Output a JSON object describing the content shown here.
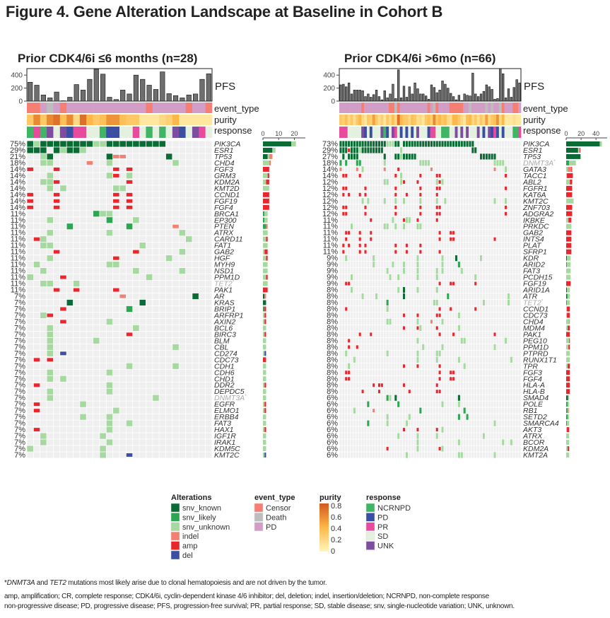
{
  "title": "Figure 4. Gene Alteration Landscape at Baseline in Cohort B",
  "footnote": {
    "line1_gene1": "DNMT3A",
    "line1_and": " and ",
    "line1_gene2": "TET2",
    "line1_star": "*",
    "line1_rest": " mutations most likely arise due to clonal hematopoiesis and are not driven by the tumor.",
    "line2": "amp, amplification; CR, complete response; CDK4/6i, cyclin-dependent kinase 4/6 inhibitor; del, deletion; indel, insertion/deletion; NCRNPD, non-complete response",
    "line3": "non-progressive disease; PD, progressive disease; PFS, progression-free survival; PR, partial response; SD, stable disease; snv, single-nucleotide variation; UNK, unknown."
  },
  "colors": {
    "alteration": {
      "K": "#0b6b35",
      "L": "#2ea552",
      "U": "#a6d9a0",
      "I": "#f48072",
      "A": "#e8262d",
      "D": "#3b4fa3"
    },
    "event": {
      "C": "#f47f72",
      "D": "#bdbdbd",
      "P": "#d29ec8"
    },
    "response": {
      "N": "#40b565",
      "D": "#3a4ea2",
      "R": "#e84a9e",
      "S": "#e4f1df",
      "U": "#7d4d9f"
    },
    "purity_scale": [
      "#fff7bc",
      "#fdb849",
      "#d2591f"
    ],
    "cell_bg": "#efefef",
    "pfs_bar": "#6e6e6e"
  },
  "legend": {
    "alterations": {
      "title": "Alterations",
      "items": [
        {
          "code": "K",
          "label": "snv_known"
        },
        {
          "code": "L",
          "label": "snv_likely"
        },
        {
          "code": "U",
          "label": "snv_unknown"
        },
        {
          "code": "I",
          "label": "indel"
        },
        {
          "code": "A",
          "label": "amp"
        },
        {
          "code": "D",
          "label": "del"
        }
      ]
    },
    "event_type": {
      "title": "event_type",
      "items": [
        {
          "code": "C",
          "label": "Censor"
        },
        {
          "code": "D",
          "label": "Death"
        },
        {
          "code": "P",
          "label": "PD"
        }
      ]
    },
    "purity": {
      "title": "purity",
      "ticks": [
        "0.8",
        "0.6",
        "0.4",
        "0.2",
        "0"
      ],
      "range": [
        0,
        0.8
      ]
    },
    "response": {
      "title": "response",
      "items": [
        {
          "code": "N",
          "label": "NCRNPD"
        },
        {
          "code": "D",
          "label": "PD"
        },
        {
          "code": "R",
          "label": "PR"
        },
        {
          "code": "S",
          "label": "SD"
        },
        {
          "code": "U",
          "label": "UNK"
        }
      ]
    }
  },
  "chart_data": [
    {
      "type": "heatmap",
      "title": "Prior CDK4/6i ≤6 months (n=28)",
      "n": 28,
      "track_labels": {
        "pfs": "PFS",
        "event": "event_type",
        "purity": "purity",
        "response": "response"
      },
      "pfs_ticks": [
        "0",
        "200",
        "400"
      ],
      "pfs_ylim": [
        0,
        500
      ],
      "pfs": [
        290,
        245,
        95,
        50,
        140,
        5,
        60,
        255,
        170,
        335,
        490,
        415,
        60,
        25,
        170,
        110,
        400,
        335,
        245,
        180,
        450,
        115,
        85,
        50,
        95,
        110,
        335,
        420
      ],
      "event": "CCPDPCPPPPPPPPPPPPCPPPPPCPPC",
      "purity": [
        0.3,
        0.6,
        0.3,
        0.6,
        0.7,
        0.35,
        0.6,
        0.2,
        0.7,
        0.4,
        0.3,
        0.35,
        0.55,
        0.55,
        0.35,
        0.3,
        0.3,
        0.1,
        0.1,
        0.1,
        0.2,
        0.25,
        0.4,
        0.1,
        0.1,
        0.1,
        0.1,
        0.1
      ],
      "response": "NRNUSUDRRSSNDDSSRSNSNSUDSURS",
      "count_ticks": [
        "0",
        "10",
        "20"
      ],
      "count_xlim": [
        0,
        27
      ],
      "rows": [
        {
          "gene": "PIK3CA",
          "pct": "75%",
          "cells": "0-20K 1U 10-11U"
        },
        {
          "gene": "ESR1",
          "pct": "29%",
          "cells": "0-2K 4K 5U 6-7K 8U"
        },
        {
          "gene": "TP53",
          "pct": "21%",
          "cells": "2U 3K 12K 13-14I 21K"
        },
        {
          "gene": "CHD4",
          "pct": "18%",
          "cells": "2-3U 9I 12U 22U"
        },
        {
          "gene": "FGF3",
          "pct": "14%",
          "cells": "0A 4A 13A 15A"
        },
        {
          "gene": "GRM3",
          "pct": "14%",
          "cells": "3U 12U 13A 15U"
        },
        {
          "gene": "KDM2A",
          "pct": "14%",
          "cells": "2-3U 4A 15A"
        },
        {
          "gene": "KMT2D",
          "pct": "14%",
          "cells": "3U 5U 13-14U"
        },
        {
          "gene": "CCND1",
          "pct": "14%",
          "cells": "0A 4A 13A 15A"
        },
        {
          "gene": "FGF19",
          "pct": "14%",
          "cells": "0A 4A 13A 15A"
        },
        {
          "gene": "FGF4",
          "pct": "14%",
          "cells": "0A 4A 13A 15A"
        },
        {
          "gene": "BRCA1",
          "pct": "11%",
          "cells": "10L 11-12U"
        },
        {
          "gene": "EP300",
          "pct": "11%",
          "cells": "3U 12L 16U"
        },
        {
          "gene": "PTEN",
          "pct": "11%",
          "cells": "6L 15L 22I"
        },
        {
          "gene": "ATRX",
          "pct": "11%",
          "cells": "3U 12U 23U"
        },
        {
          "gene": "CARD11",
          "pct": "11%",
          "cells": "1A 2U 24U"
        },
        {
          "gene": "FAT1",
          "pct": "11%",
          "cells": "2-3U 17U"
        },
        {
          "gene": "GAB2",
          "pct": "11%",
          "cells": "4A 16A 23U"
        },
        {
          "gene": "HGF",
          "pct": "11%",
          "cells": "3U 13A 21U"
        },
        {
          "gene": "MYH9",
          "pct": "11%",
          "cells": "1U 12-13U"
        },
        {
          "gene": "NSD1",
          "pct": "11%",
          "cells": "2U 16U 23U"
        },
        {
          "gene": "PPM1D",
          "pct": "11%",
          "cells": "0U 5A 18U"
        },
        {
          "gene": "TET2",
          "pct": "11%",
          "cells": "2-3U 7U",
          "ch": "*"
        },
        {
          "gene": "PAK1",
          "pct": "11%",
          "cells": "4A 7A 13A"
        },
        {
          "gene": "AR",
          "pct": "7%",
          "cells": "14I 25K"
        },
        {
          "gene": "KRAS",
          "pct": "7%",
          "cells": "6K 17K"
        },
        {
          "gene": "BRIP1",
          "pct": "7%",
          "cells": "5A 15L"
        },
        {
          "gene": "ARFRP1",
          "pct": "7%",
          "cells": "2U 3A"
        },
        {
          "gene": "AXIN2",
          "pct": "7%",
          "cells": "5A 12U"
        },
        {
          "gene": "BCL6",
          "pct": "7%",
          "cells": "3U 16U"
        },
        {
          "gene": "BIRC3",
          "pct": "7%",
          "cells": "3U 15A"
        },
        {
          "gene": "BLM",
          "pct": "7%",
          "cells": "3U 10U"
        },
        {
          "gene": "CBL",
          "pct": "7%",
          "cells": "3U 22U"
        },
        {
          "gene": "CD274",
          "pct": "7%",
          "cells": "3U 5D"
        },
        {
          "gene": "CDC73",
          "pct": "7%",
          "cells": "1A 3A"
        },
        {
          "gene": "CDH1",
          "pct": "7%",
          "cells": "15U 22U"
        },
        {
          "gene": "CDH6",
          "pct": "7%",
          "cells": "3U 12U"
        },
        {
          "gene": "CHD1",
          "pct": "7%",
          "cells": "3U 5U"
        },
        {
          "gene": "DDR2",
          "pct": "7%",
          "cells": "1A 12U"
        },
        {
          "gene": "DEPDC5",
          "pct": "7%",
          "cells": "3U 12U"
        },
        {
          "gene": "DNMT3A",
          "pct": "7%",
          "cells": "3U 19U",
          "ch": "*"
        },
        {
          "gene": "EGFR",
          "pct": "7%",
          "cells": "1A 8U"
        },
        {
          "gene": "ELMO1",
          "pct": "7%",
          "cells": "1A 13U"
        },
        {
          "gene": "ERBB4",
          "pct": "7%",
          "cells": "8U 12U"
        },
        {
          "gene": "FAT3",
          "pct": "7%",
          "cells": "12U 15U"
        },
        {
          "gene": "HAX1",
          "pct": "7%",
          "cells": "1A 12U"
        },
        {
          "gene": "IGF1R",
          "pct": "7%",
          "cells": "2U 11U"
        },
        {
          "gene": "IRAK1",
          "pct": "7%",
          "cells": "2U 12U"
        },
        {
          "gene": "KDM5C",
          "pct": "7%",
          "cells": "0U 11U"
        },
        {
          "gene": "KMT2C",
          "pct": "7%",
          "cells": "11U 15D"
        }
      ]
    },
    {
      "type": "heatmap",
      "title": "Prior CDK4/6i >6mo (n=66)",
      "n": 66,
      "track_labels": {
        "pfs": "PFS",
        "event": "event_type",
        "purity": "purity",
        "response": "response"
      },
      "pfs_ticks": [
        "0",
        "200",
        "400"
      ],
      "pfs_ylim": [
        0,
        500
      ],
      "pfs": [
        250,
        260,
        220,
        280,
        110,
        170,
        170,
        170,
        160,
        70,
        110,
        60,
        100,
        170,
        70,
        20,
        160,
        50,
        110,
        260,
        40,
        480,
        50,
        230,
        60,
        220,
        110,
        280,
        190,
        110,
        110,
        80,
        30,
        250,
        210,
        130,
        170,
        310,
        260,
        200,
        120,
        70,
        20,
        90,
        10,
        110,
        90,
        80,
        430,
        110,
        70,
        110,
        150,
        250,
        220,
        180,
        30,
        40,
        500,
        420,
        50,
        190,
        60,
        210,
        330,
        280
      ],
      "event": "PPPPPPPPCPPPPPPPPPCCDCPPPPPPPPPPCPDCPPPPCCCCCPPDPPPPPDPDPPDCPPPCCP",
      "purity": [
        0.3,
        0.25,
        0.35,
        0.2,
        0.3,
        0.15,
        0.3,
        0.4,
        0.2,
        0.1,
        0.3,
        0.25,
        0.5,
        0.3,
        0.15,
        0.25,
        0.1,
        0.3,
        0.2,
        0.35,
        0.2,
        0.7,
        0.4,
        0.3,
        0.3,
        0.2,
        0.35,
        0.3,
        0.15,
        0.2,
        0.1,
        0.3,
        0.35,
        0.25,
        0.6,
        0.3,
        0.4,
        0.3,
        0.35,
        0.2,
        0.15,
        0.4,
        0.4,
        0.3,
        0.2,
        0.1,
        0.35,
        0.4,
        0.2,
        0.3,
        0.15,
        0.3,
        0.2,
        0.5,
        0.2,
        0.3,
        0.35,
        0.55,
        0.2,
        0.4,
        0.1,
        0.1,
        0.1,
        0.15,
        0.1,
        0.1
      ],
      "response": "RRRSSSSSUDSDSSSUNDSURSDSDSDSUSSSDRRSSNNNSSUSUSUSSSUSDSUDRDSDSSSNNR",
      "count_ticks": [
        "0",
        "20",
        "40"
      ],
      "count_xlim": [
        0,
        55
      ],
      "rows": [
        {
          "gene": "PIK3CA",
          "pct": "73%",
          "cells": "0-21K 23-48K 17-19U"
        },
        {
          "gene": "ESR1",
          "pct": "29%",
          "cells": "0-15K 3A 7U 22U 48-49K"
        },
        {
          "gene": "TP53",
          "pct": "27%",
          "cells": "1K 3-6K 16K 20-21K 22U 23-27K 51-56K"
        },
        {
          "gene": "DNMT3A",
          "pct": "18%",
          "cells": "0L 2L 6-7L 16U 29-32U 56-59U",
          "ch": "*"
        },
        {
          "gene": "GATA3",
          "pct": "14%",
          "cells": "0I 6I 8U 16I 21A 33I 56I 60U"
        },
        {
          "gene": "TACC1",
          "pct": "14%",
          "cells": "1-2A 7A 20A 22U 29A 35-36A 60A"
        },
        {
          "gene": "ABL2",
          "pct": "12%",
          "cells": "16-17U 22U 23A 28A 35U 36A 37U"
        },
        {
          "gene": "FGFR1",
          "pct": "12%",
          "cells": "1-2A 9A 20A 29A 35-36A 60A"
        },
        {
          "gene": "KAT6A",
          "pct": "12%",
          "cells": "1A 3A 7A 9A 20A 24A 29A 35A"
        },
        {
          "gene": "KMT2C",
          "pct": "12%",
          "cells": "8U 10U 16U 20U 23U 29U 35U 38U 56U 60U"
        },
        {
          "gene": "ZNF703",
          "pct": "12%",
          "cells": "1-2A 9A 20A 29A 35-36A 60A"
        },
        {
          "gene": "ADGRA2",
          "pct": "12%",
          "cells": "1-2A 9A 20A 29A 35-36A 60A"
        },
        {
          "gene": "IKBKE",
          "pct": "11%",
          "cells": "11A 19U 23A 24-25U 28A 35A"
        },
        {
          "gene": "PRKDC",
          "pct": "11%",
          "cells": "4U 16-17U 20U 23U 28-29U"
        },
        {
          "gene": "GAB2",
          "pct": "11%",
          "cells": "2-3A 7A 11A 36A 40-41A"
        },
        {
          "gene": "INTS4",
          "pct": "11%",
          "cells": "2A 7A 11A 36A 40-41A 56A"
        },
        {
          "gene": "PLAT",
          "pct": "11%",
          "cells": "1A 3A 7A 9A 20A 24A 29A"
        },
        {
          "gene": "SFRP1",
          "pct": "11%",
          "cells": "1A 7A 9A 20A 24A 29A 36A"
        },
        {
          "gene": "KDR",
          "pct": "9%",
          "cells": "2U 12U 28U 37U 42K 51U"
        },
        {
          "gene": "ARID2",
          "pct": "9%",
          "cells": "12U 19U 23U 28U 37U 43L"
        },
        {
          "gene": "FAT3",
          "pct": "9%",
          "cells": "17U 23U 28U 35U 37U 44U"
        },
        {
          "gene": "PCDH15",
          "pct": "9%",
          "cells": "4U 18U 21U 28U 35U 49U"
        },
        {
          "gene": "FGF19",
          "pct": "9%",
          "cells": "2-3A 36A 40-41A 49A"
        },
        {
          "gene": "ARID1A",
          "pct": "8%",
          "cells": "4U 21U 23K 28U 35U"
        },
        {
          "gene": "ATR",
          "pct": "8%",
          "cells": "8U 13U 23K 39L 61U"
        },
        {
          "gene": "TET2",
          "pct": "8%",
          "cells": "17L 34-35U 52U 61U",
          "ch": "*"
        },
        {
          "gene": "CCND1",
          "pct": "8%",
          "cells": "2A 17U 36A 40A 49A"
        },
        {
          "gene": "CDC73",
          "pct": "8%",
          "cells": "23A 28A 35-36A 43U"
        },
        {
          "gene": "CHD4",
          "pct": "8%",
          "cells": "17-18U 28U 33I 37U"
        },
        {
          "gene": "MDM4",
          "pct": "8%",
          "cells": "23A 28A 29U 35A 43U"
        },
        {
          "gene": "PAK1",
          "pct": "8%",
          "cells": "7A 11A 36A 41A 56A"
        },
        {
          "gene": "PEG10",
          "pct": "8%",
          "cells": "3A 28U 44-45U 60U"
        },
        {
          "gene": "PPM1D",
          "pct": "8%",
          "cells": "3A 6A 30U 37U 56U"
        },
        {
          "gene": "PTPRD",
          "pct": "8%",
          "cells": "2U 17U 28U 35-36U"
        },
        {
          "gene": "RUNX1T1",
          "pct": "8%",
          "cells": "5U 28U 35U 43U 62U"
        },
        {
          "gene": "TPR",
          "pct": "8%",
          "cells": "3U 23A 28A 36A 45U"
        },
        {
          "gene": "FGF3",
          "pct": "8%",
          "cells": "2-3A 36A 40-41A"
        },
        {
          "gene": "FGF4",
          "pct": "8%",
          "cells": "2-3A 36A 40-41A"
        },
        {
          "gene": "HLA-A",
          "pct": "8%",
          "cells": "12A 14-15A 23A 35A"
        },
        {
          "gene": "HLA-B",
          "pct": "8%",
          "cells": "8A 14A 25A 35-36A"
        },
        {
          "gene": "SMAD4",
          "pct": "6%",
          "cells": "17L 18U 20K 43K"
        },
        {
          "gene": "POLE",
          "pct": "6%",
          "cells": "10L 21L 37U 43U"
        },
        {
          "gene": "RB1",
          "pct": "6%",
          "cells": "5U 12I 29L 45L"
        },
        {
          "gene": "SETD2",
          "pct": "6%",
          "cells": "17U 25U 43L 46L"
        },
        {
          "gene": "SMARCA4",
          "pct": "6%",
          "cells": "10L 17U 24U 56U"
        },
        {
          "gene": "AKT3",
          "pct": "6%",
          "cells": "23A 28A 35A 37U"
        },
        {
          "gene": "ATRX",
          "pct": "6%",
          "cells": "21U 28U 35U 52U"
        },
        {
          "gene": "BCOR",
          "pct": "6%",
          "cells": "28U 43U 59U 62U"
        },
        {
          "gene": "KDM2A",
          "pct": "6%",
          "cells": "17A 28U 36A 37U"
        },
        {
          "gene": "KMT2A",
          "pct": "6%",
          "cells": "24U 43-44U 56U"
        }
      ]
    }
  ]
}
